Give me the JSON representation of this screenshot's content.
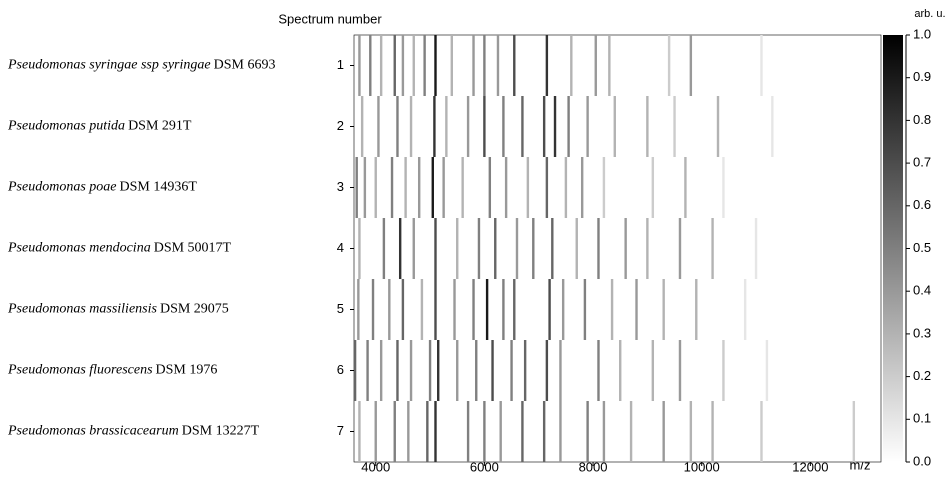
{
  "chart_data": {
    "type": "gel",
    "y_label": "Spectrum number",
    "x_unit_label": "m/z",
    "colorbar_label": "arb. u.",
    "xlim": [
      3600,
      13300
    ],
    "xticks": [
      4000,
      6000,
      8000,
      10000,
      12000
    ],
    "clim": [
      0,
      1
    ],
    "cticks": [
      {
        "value": 0,
        "label": "0.0"
      },
      0.1,
      0.2,
      0.3,
      0.4,
      0.5,
      0.6,
      0.7,
      0.8,
      0.9,
      {
        "value": 1,
        "label": "1.0"
      }
    ],
    "spectra": [
      {
        "number": 1,
        "species": "Pseudomonas syringae ssp syringae",
        "strain": "DSM 6693",
        "peaks": {
          "mz": [
            3700,
            3900,
            4100,
            4350,
            4500,
            4700,
            4900,
            5100,
            5400,
            5800,
            6000,
            6250,
            6550,
            7150,
            7600,
            8050,
            8300,
            9400,
            9800,
            11100
          ],
          "intensity": [
            0.4,
            0.5,
            0.3,
            0.6,
            0.4,
            0.3,
            0.5,
            0.9,
            0.3,
            0.4,
            0.5,
            0.4,
            0.7,
            0.8,
            0.3,
            0.4,
            0.3,
            0.2,
            0.4,
            0.1
          ]
        }
      },
      {
        "number": 2,
        "species": "Pseudomonas putida",
        "strain": "DSM 291T",
        "peaks": {
          "mz": [
            3750,
            4050,
            4400,
            4650,
            5080,
            5300,
            5700,
            6000,
            6350,
            6700,
            7100,
            7300,
            7550,
            7900,
            8400,
            9000,
            9500,
            10300,
            11300
          ],
          "intensity": [
            0.3,
            0.4,
            0.5,
            0.3,
            0.8,
            0.3,
            0.4,
            0.7,
            0.5,
            0.6,
            0.7,
            0.8,
            0.5,
            0.4,
            0.3,
            0.3,
            0.2,
            0.3,
            0.1
          ]
        }
      },
      {
        "number": 3,
        "species": "Pseudomonas poae",
        "strain": "DSM 14936T",
        "peaks": {
          "mz": [
            3650,
            3800,
            4000,
            4300,
            4550,
            4800,
            5050,
            5250,
            5600,
            6100,
            6400,
            6800,
            7150,
            7500,
            7800,
            8200,
            9100,
            9700,
            10400
          ],
          "intensity": [
            0.5,
            0.4,
            0.3,
            0.5,
            0.3,
            0.4,
            0.9,
            0.4,
            0.3,
            0.5,
            0.4,
            0.3,
            0.6,
            0.3,
            0.4,
            0.2,
            0.2,
            0.3,
            0.1
          ]
        }
      },
      {
        "number": 4,
        "species": "Pseudomonas mendocina",
        "strain": "DSM 50017T",
        "peaks": {
          "mz": [
            3700,
            4150,
            4450,
            4700,
            5100,
            5500,
            5900,
            6200,
            6600,
            6900,
            7250,
            7700,
            8100,
            8600,
            9000,
            9600,
            10200,
            11000
          ],
          "intensity": [
            0.3,
            0.5,
            0.8,
            0.4,
            0.7,
            0.3,
            0.5,
            0.6,
            0.4,
            0.5,
            0.6,
            0.3,
            0.5,
            0.4,
            0.3,
            0.4,
            0.3,
            0.1
          ]
        }
      },
      {
        "number": 5,
        "species": "Pseudomonas massiliensis",
        "strain": "DSM 29075",
        "peaks": {
          "mz": [
            3680,
            3950,
            4250,
            4500,
            4850,
            5100,
            5450,
            5800,
            6050,
            6350,
            6550,
            7200,
            7450,
            7850,
            8350,
            8800,
            9300,
            9900,
            10800
          ],
          "intensity": [
            0.4,
            0.5,
            0.4,
            0.6,
            0.3,
            0.7,
            0.4,
            0.5,
            0.9,
            0.5,
            0.6,
            0.7,
            0.4,
            0.5,
            0.3,
            0.4,
            0.3,
            0.3,
            0.1
          ]
        }
      },
      {
        "number": 6,
        "species": "Pseudomonas fluorescens",
        "strain": "DSM 1976",
        "peaks": {
          "mz": [
            3620,
            3850,
            4100,
            4400,
            4650,
            5000,
            5150,
            5500,
            5850,
            6150,
            6500,
            6750,
            7150,
            7400,
            8100,
            8500,
            9100,
            9600,
            10400,
            11200
          ],
          "intensity": [
            0.6,
            0.5,
            0.4,
            0.6,
            0.4,
            0.5,
            0.8,
            0.4,
            0.5,
            0.7,
            0.5,
            0.6,
            0.7,
            0.4,
            0.5,
            0.3,
            0.3,
            0.4,
            0.2,
            0.1
          ]
        }
      },
      {
        "number": 7,
        "species": "Pseudomonas brassicacearum",
        "strain": "DSM 13227T",
        "peaks": {
          "mz": [
            3700,
            4000,
            4350,
            4600,
            4950,
            5100,
            5700,
            6000,
            6300,
            6700,
            7100,
            7400,
            7900,
            8200,
            8700,
            9300,
            9800,
            10200,
            11100,
            12800
          ],
          "intensity": [
            0.3,
            0.4,
            0.5,
            0.4,
            0.6,
            0.8,
            0.5,
            0.5,
            0.4,
            0.6,
            0.6,
            0.4,
            0.5,
            0.4,
            0.3,
            0.4,
            0.3,
            0.3,
            0.2,
            0.2
          ]
        }
      }
    ]
  }
}
